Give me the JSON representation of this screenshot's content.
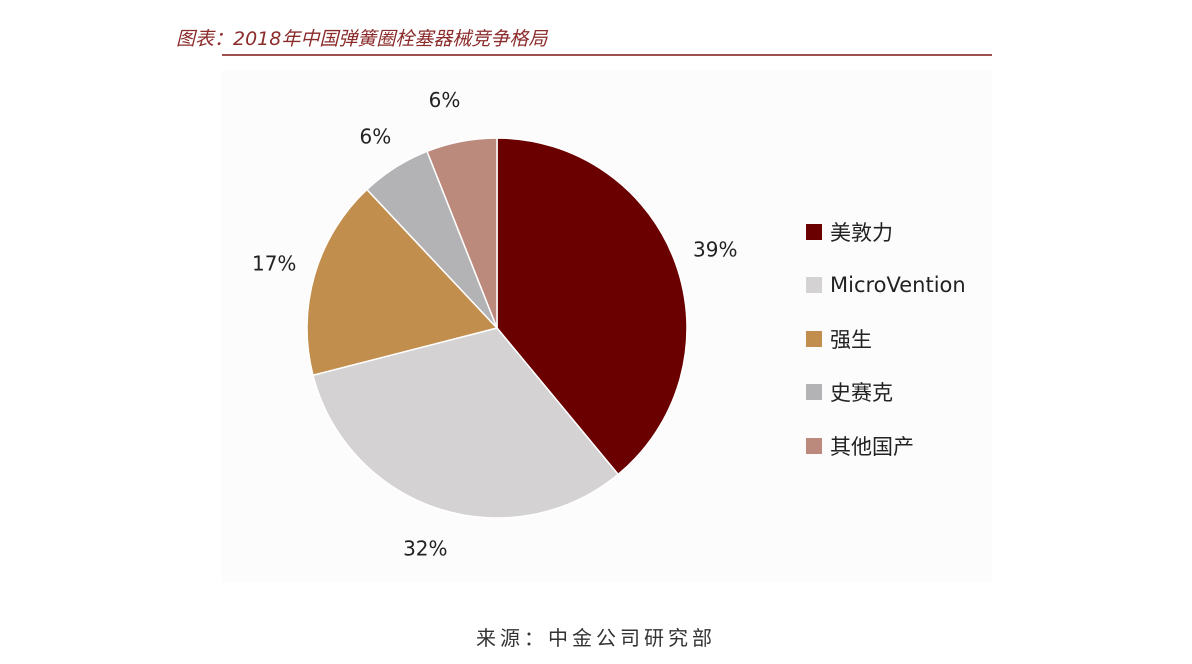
{
  "chart_data": {
    "type": "pie",
    "title": "图表：2018年中国弹簧圈栓塞器械竞争格局",
    "categories": [
      "美敦力",
      "MicroVention",
      "强生",
      "史赛克",
      "其他国产"
    ],
    "values": [
      39,
      32,
      17,
      6,
      6
    ],
    "labels": [
      "39%",
      "32%",
      "17%",
      "6%",
      "6%"
    ],
    "colors": [
      "#6b0000",
      "#d4d2d3",
      "#c28e4e",
      "#b3b2b5",
      "#bc8a7c"
    ],
    "start": "12 o'clock, clockwise",
    "legend_position": "right"
  },
  "source": "来源：中金公司研究部"
}
